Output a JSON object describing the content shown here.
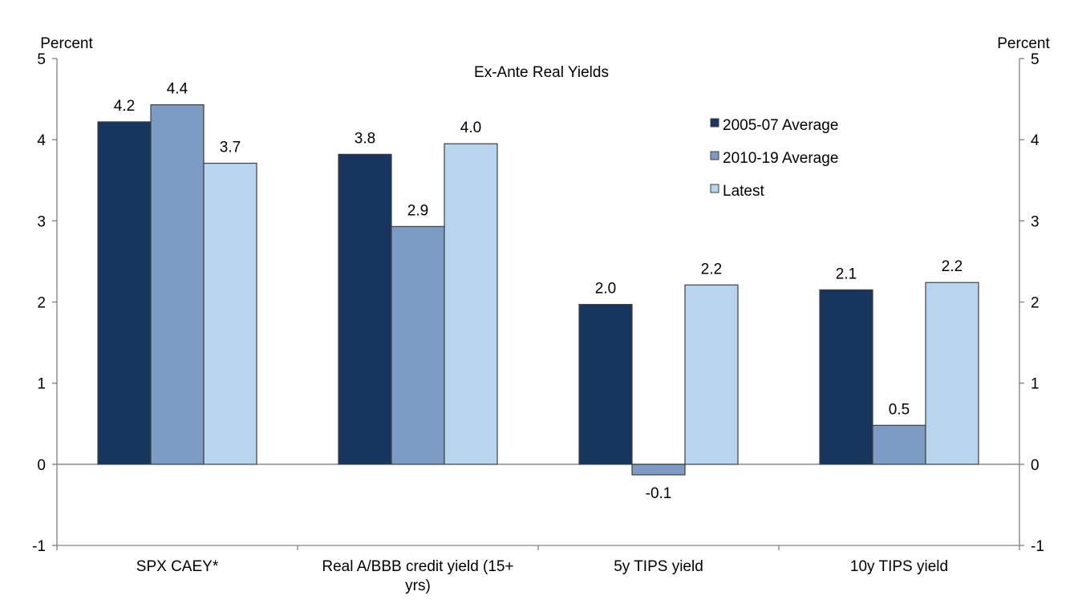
{
  "chart_data": {
    "type": "bar",
    "title": "Ex-Ante Real Yields",
    "ylabel_left": "Percent",
    "ylabel_right": "Percent",
    "ylim": [
      -1,
      5
    ],
    "yticks": [
      5,
      4,
      3,
      2,
      1,
      0,
      -1
    ],
    "ytick_labels": [
      "5",
      "4",
      "3",
      "2",
      "1",
      "0",
      "-1"
    ],
    "categories": [
      [
        "SPX CAEY*"
      ],
      [
        "Real A/BBB credit yield (15+",
        "yrs)"
      ],
      [
        "5y TIPS yield"
      ],
      [
        "10y TIPS yield"
      ]
    ],
    "series": [
      {
        "name": "2005-07 Average",
        "color": "#17365d",
        "values": [
          4.22,
          3.82,
          1.97,
          2.15
        ],
        "labels": [
          "4.2",
          "3.8",
          "2.0",
          "2.1"
        ]
      },
      {
        "name": "2010-19 Average",
        "color": "#7c9bc5",
        "values": [
          4.43,
          2.93,
          -0.13,
          0.48
        ],
        "labels": [
          "4.4",
          "2.9",
          "-0.1",
          "0.5"
        ]
      },
      {
        "name": "Latest",
        "color": "#b8d4ee",
        "values": [
          3.71,
          3.95,
          2.21,
          2.24
        ],
        "labels": [
          "3.7",
          "4.0",
          "2.2",
          "2.2"
        ]
      }
    ],
    "legend_position": "top-right",
    "grid": false
  }
}
